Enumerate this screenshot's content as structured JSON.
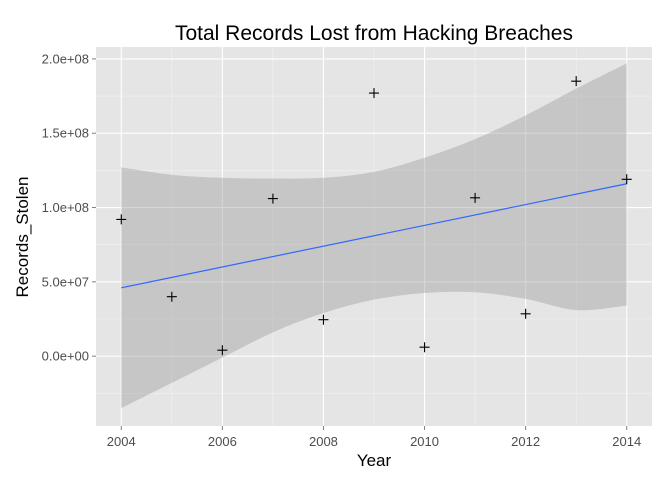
{
  "chart_data": {
    "type": "scatter",
    "title": "Total Records Lost from Hacking Breaches",
    "xlabel": "Year",
    "ylabel": "Records_Stolen",
    "xlim": [
      2003.5,
      2014.5
    ],
    "ylim": [
      -47000000,
      208000000
    ],
    "x_ticks": [
      2004,
      2006,
      2008,
      2010,
      2012,
      2014
    ],
    "x_tick_labels": [
      "2004",
      "2006",
      "2008",
      "2010",
      "2012",
      "2014"
    ],
    "y_ticks": [
      0,
      50000000,
      100000000,
      150000000,
      200000000
    ],
    "y_tick_labels": [
      "0.0e+00",
      "5.0e+07",
      "1.0e+08",
      "1.5e+08",
      "2.0e+08"
    ],
    "grid": true,
    "marker": "+",
    "points": [
      {
        "x": 2004,
        "y": 92000000
      },
      {
        "x": 2005,
        "y": 40000000
      },
      {
        "x": 2006,
        "y": 4000000
      },
      {
        "x": 2007,
        "y": 106000000
      },
      {
        "x": 2008,
        "y": 24500000
      },
      {
        "x": 2009,
        "y": 177000000
      },
      {
        "x": 2010,
        "y": 6000000
      },
      {
        "x": 2011,
        "y": 106500000
      },
      {
        "x": 2012,
        "y": 28500000
      },
      {
        "x": 2013,
        "y": 185000000
      },
      {
        "x": 2014,
        "y": 119000000
      }
    ],
    "trend_line": {
      "x": [
        2004,
        2014
      ],
      "y": [
        46000000,
        116000000
      ]
    },
    "confidence_band": {
      "x": [
        2004,
        2005,
        2006,
        2007,
        2008,
        2009,
        2010,
        2011,
        2012,
        2013,
        2014
      ],
      "lower": [
        -35000000,
        -18000000,
        -1000000,
        16000000,
        29000000,
        38000000,
        42500000,
        43000000,
        38500000,
        31000000,
        34000000
      ],
      "upper": [
        127000000,
        122000000,
        120000000,
        119500000,
        120000000,
        124000000,
        133500000,
        146000000,
        162000000,
        180000000,
        197000000
      ]
    },
    "colors": {
      "panel_background": "#e5e5e5",
      "grid_major": "#ffffff",
      "grid_minor": "#f2f2f2",
      "band_fill": "#999999",
      "trend_line": "#3366ff",
      "points": "#000000",
      "tick_label": "#4d4d4d"
    }
  }
}
